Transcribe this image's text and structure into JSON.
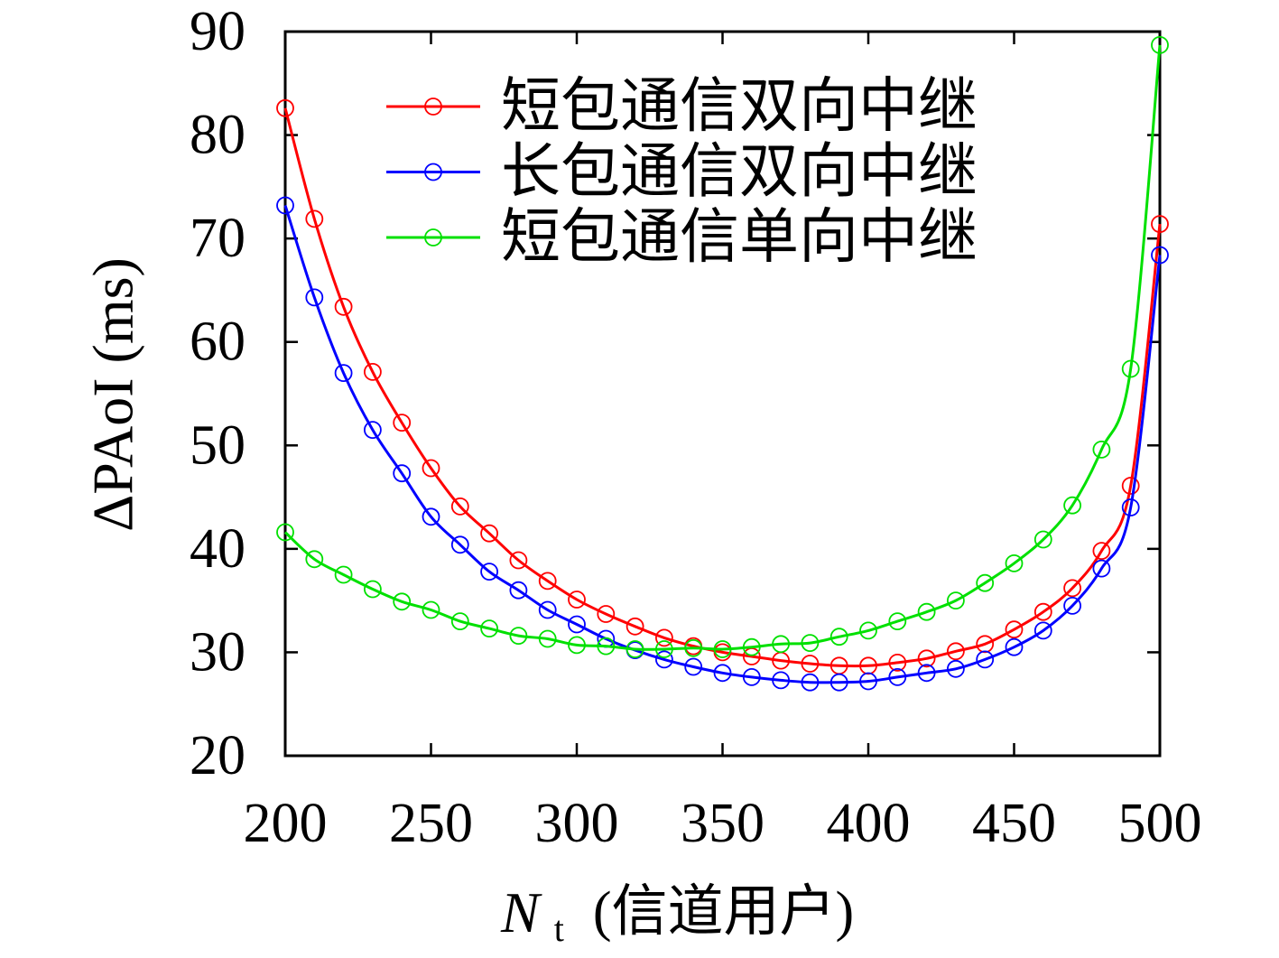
{
  "chart_data": {
    "type": "line",
    "title": "",
    "xlabel": {
      "variable": "N",
      "subscript": "t",
      "unit": "(信道用户)"
    },
    "ylabel": "ΔPAoI (ms)",
    "xlim": [
      200,
      500
    ],
    "ylim": [
      20,
      90
    ],
    "xticks": [
      200,
      250,
      300,
      350,
      400,
      450,
      500
    ],
    "yticks": [
      20,
      30,
      40,
      50,
      60,
      70,
      80,
      90
    ],
    "grid": false,
    "legend_position": "top-center",
    "marker": "circle",
    "x": [
      200,
      210,
      220,
      230,
      240,
      250,
      260,
      270,
      280,
      290,
      300,
      310,
      320,
      330,
      340,
      350,
      360,
      370,
      380,
      390,
      400,
      410,
      420,
      430,
      440,
      450,
      460,
      470,
      480,
      490,
      500
    ],
    "series": [
      {
        "name": "短包通信双向中继",
        "color": "#ff0000",
        "values": [
          82.6,
          71.9,
          63.4,
          57.1,
          52.2,
          47.8,
          44.1,
          41.5,
          38.9,
          36.9,
          35.1,
          33.7,
          32.5,
          31.4,
          30.6,
          30.0,
          29.6,
          29.2,
          28.9,
          28.7,
          28.7,
          29.0,
          29.4,
          30.1,
          30.8,
          32.2,
          33.9,
          36.2,
          39.8,
          46.1,
          71.4
        ]
      },
      {
        "name": "长包通信双向中继",
        "color": "#0000ff",
        "values": [
          73.2,
          64.3,
          57.0,
          51.5,
          47.3,
          43.1,
          40.4,
          37.8,
          36.0,
          34.1,
          32.7,
          31.3,
          30.2,
          29.3,
          28.6,
          28.0,
          27.6,
          27.3,
          27.1,
          27.1,
          27.2,
          27.6,
          28.0,
          28.4,
          29.3,
          30.5,
          32.1,
          34.5,
          38.1,
          44.0,
          68.4
        ]
      },
      {
        "name": "短包通信单向中继",
        "color": "#00e000",
        "values": [
          41.6,
          39.0,
          37.5,
          36.1,
          34.9,
          34.1,
          33.0,
          32.3,
          31.6,
          31.3,
          30.7,
          30.6,
          30.3,
          30.3,
          30.4,
          30.3,
          30.5,
          30.8,
          30.9,
          31.5,
          32.1,
          33.0,
          33.9,
          35.0,
          36.7,
          38.6,
          40.9,
          44.2,
          49.6,
          57.4,
          88.7
        ]
      }
    ]
  }
}
